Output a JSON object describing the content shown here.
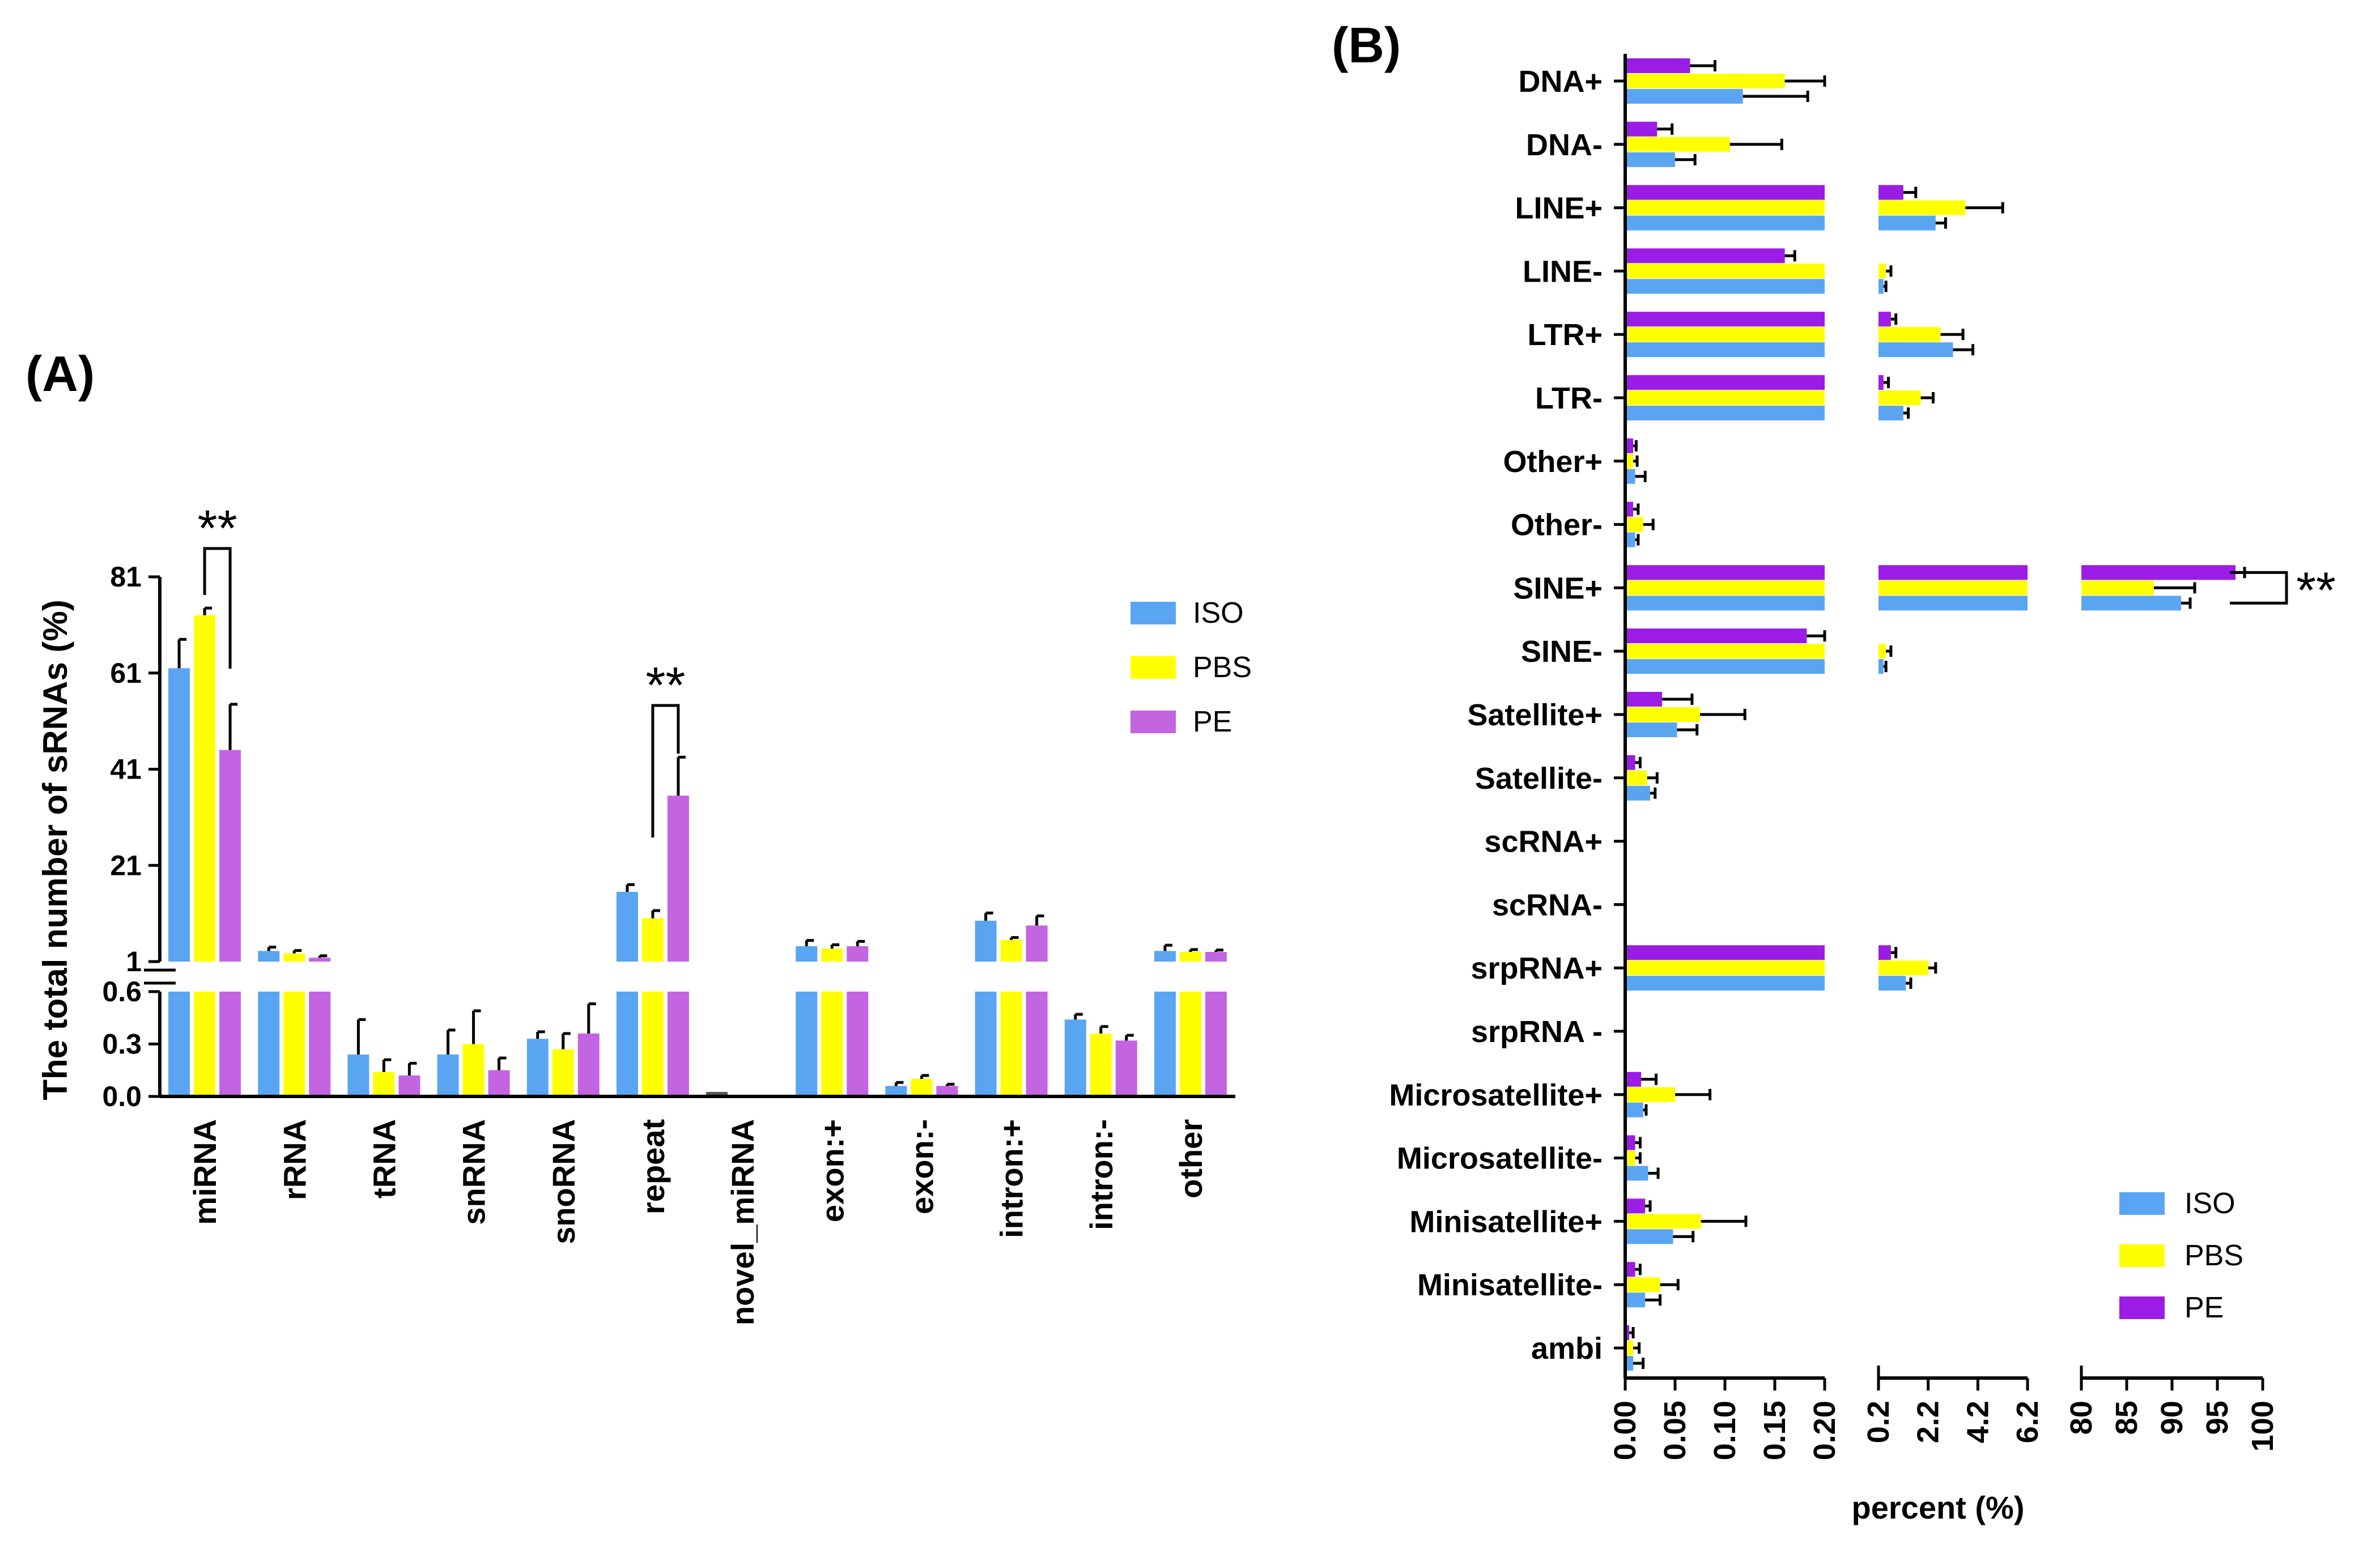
{
  "panels": {
    "a": "(A)",
    "b": "(B)"
  },
  "colors": {
    "ISO": "#5aa5f2",
    "PBS": "#ffff00",
    "PE_A": "#c364e0",
    "PE_B": "#9b1ce4"
  },
  "chart_data": [
    {
      "type": "bar",
      "panel": "(A)",
      "title": "",
      "ylabel": "The total number of sRNAs (%)",
      "xlabel": "",
      "categories": [
        "miRNA",
        "rRNA",
        "tRNA",
        "snRNA",
        "snoRNA",
        "repeat",
        "novel_miRNA",
        "exon:+",
        "exon:-",
        "intron:+",
        "intron:-",
        "other"
      ],
      "series": [
        {
          "name": "ISO",
          "values": [
            62,
            3.2,
            0.24,
            0.24,
            0.33,
            15.5,
            0,
            4.2,
            0.06,
            9.5,
            0.44,
            3.2
          ],
          "errors": [
            6,
            0.8,
            0.2,
            0.14,
            0.04,
            1.5,
            0,
            1.2,
            0.02,
            1.6,
            0.03,
            1.2
          ]
        },
        {
          "name": "PBS",
          "values": [
            73,
            2.7,
            0.14,
            0.3,
            0.27,
            10,
            0,
            3.7,
            0.1,
            5.5,
            0.36,
            3
          ],
          "errors": [
            1.5,
            0.6,
            0.07,
            0.19,
            0.09,
            1.6,
            0,
            0.8,
            0.02,
            0.5,
            0.04,
            0.5
          ]
        },
        {
          "name": "PE",
          "values": [
            45,
            1.8,
            0.12,
            0.15,
            0.36,
            35.5,
            0,
            4.2,
            0.06,
            8.5,
            0.32,
            3
          ],
          "errors": [
            9.5,
            0.4,
            0.07,
            0.07,
            0.17,
            8,
            0,
            1,
            0.01,
            2,
            0.03,
            0.4
          ]
        }
      ],
      "y_axis_segments": [
        {
          "range": [
            0,
            0.6
          ],
          "ticks": [
            "0.0",
            "0.3",
            "0.6"
          ]
        },
        {
          "range": [
            1,
            81
          ],
          "ticks": [
            "1",
            "21",
            "41",
            "61",
            "81"
          ]
        }
      ],
      "significance": [
        {
          "label": "**",
          "between": [
            "PBS",
            "PE"
          ],
          "category": "miRNA"
        },
        {
          "label": "**",
          "between": [
            "PBS",
            "PE"
          ],
          "category": "repeat"
        }
      ],
      "legend": {
        "position": "right",
        "entries": [
          "ISO",
          "PBS",
          "PE"
        ]
      }
    },
    {
      "type": "bar",
      "orientation": "horizontal",
      "panel": "(B)",
      "title": "",
      "xlabel": "percent (%)",
      "categories": [
        "DNA+",
        "DNA-",
        "LINE+",
        "LINE-",
        "LTR+",
        "LTR-",
        "Other+",
        "Other-",
        "SINE+",
        "SINE-",
        "Satellite+",
        "Satellite-",
        "scRNA+",
        "scRNA-",
        "srpRNA+",
        "srpRNA -",
        "Microsatellite+",
        "Microsatellite-",
        "Minisatellite+",
        "Minisatellite-",
        "ambi"
      ],
      "series": [
        {
          "name": "ISO",
          "values": [
            0.118,
            0.05,
            2.5,
            0.4,
            3.2,
            1.2,
            0.01,
            0.01,
            91,
            0.4,
            0.052,
            0.025,
            0,
            0,
            1.3,
            0,
            0.018,
            0.023,
            0.048,
            0.02,
            0.008
          ],
          "errors": [
            0.065,
            0.02,
            0.4,
            0.1,
            0.8,
            0.2,
            0.01,
            0.003,
            1,
            0.1,
            0.02,
            0.005,
            0,
            0,
            0.2,
            0,
            0.003,
            0.01,
            0.02,
            0.015,
            0.01
          ]
        },
        {
          "name": "PBS",
          "values": [
            0.16,
            0.105,
            3.7,
            0.5,
            2.7,
            1.9,
            0.008,
            0.018,
            88,
            0.5,
            0.075,
            0.022,
            0,
            0,
            2.2,
            0,
            0.05,
            0.01,
            0.076,
            0.035,
            0.008
          ],
          "errors": [
            0.045,
            0.052,
            1.5,
            0.2,
            0.9,
            0.5,
            0.004,
            0.01,
            4.5,
            0.2,
            0.045,
            0.01,
            0,
            0,
            0.3,
            0,
            0.035,
            0.005,
            0.045,
            0.018,
            0.006
          ]
        },
        {
          "name": "PE",
          "values": [
            0.065,
            0.032,
            1.2,
            0.16,
            0.7,
            0.4,
            0.008,
            0.008,
            97,
            0.182,
            0.037,
            0.01,
            0,
            0,
            0.7,
            0,
            0.016,
            0.01,
            0.02,
            0.01,
            0.004
          ],
          "errors": [
            0.025,
            0.015,
            0.5,
            0.01,
            0.2,
            0.2,
            0.003,
            0.005,
            1,
            0.018,
            0.03,
            0.005,
            0,
            0,
            0.2,
            0,
            0.015,
            0.005,
            0.005,
            0.005,
            0.004
          ]
        }
      ],
      "x_axis_segments": [
        {
          "range": [
            0,
            0.2
          ],
          "ticks": [
            "0.00",
            "0.05",
            "0.10",
            "0.15",
            "0.20"
          ]
        },
        {
          "range": [
            0.2,
            6.2
          ],
          "ticks": [
            "0.2",
            "2.2",
            "4.2",
            "6.2"
          ]
        },
        {
          "range": [
            80,
            100
          ],
          "ticks": [
            "80",
            "85",
            "90",
            "95",
            "100"
          ]
        }
      ],
      "significance": [
        {
          "label": "**",
          "between": [
            "ISO",
            "PE"
          ],
          "category": "SINE+"
        }
      ],
      "legend": {
        "position": "bottom-right",
        "entries": [
          "ISO",
          "PBS",
          "PE"
        ]
      }
    }
  ]
}
